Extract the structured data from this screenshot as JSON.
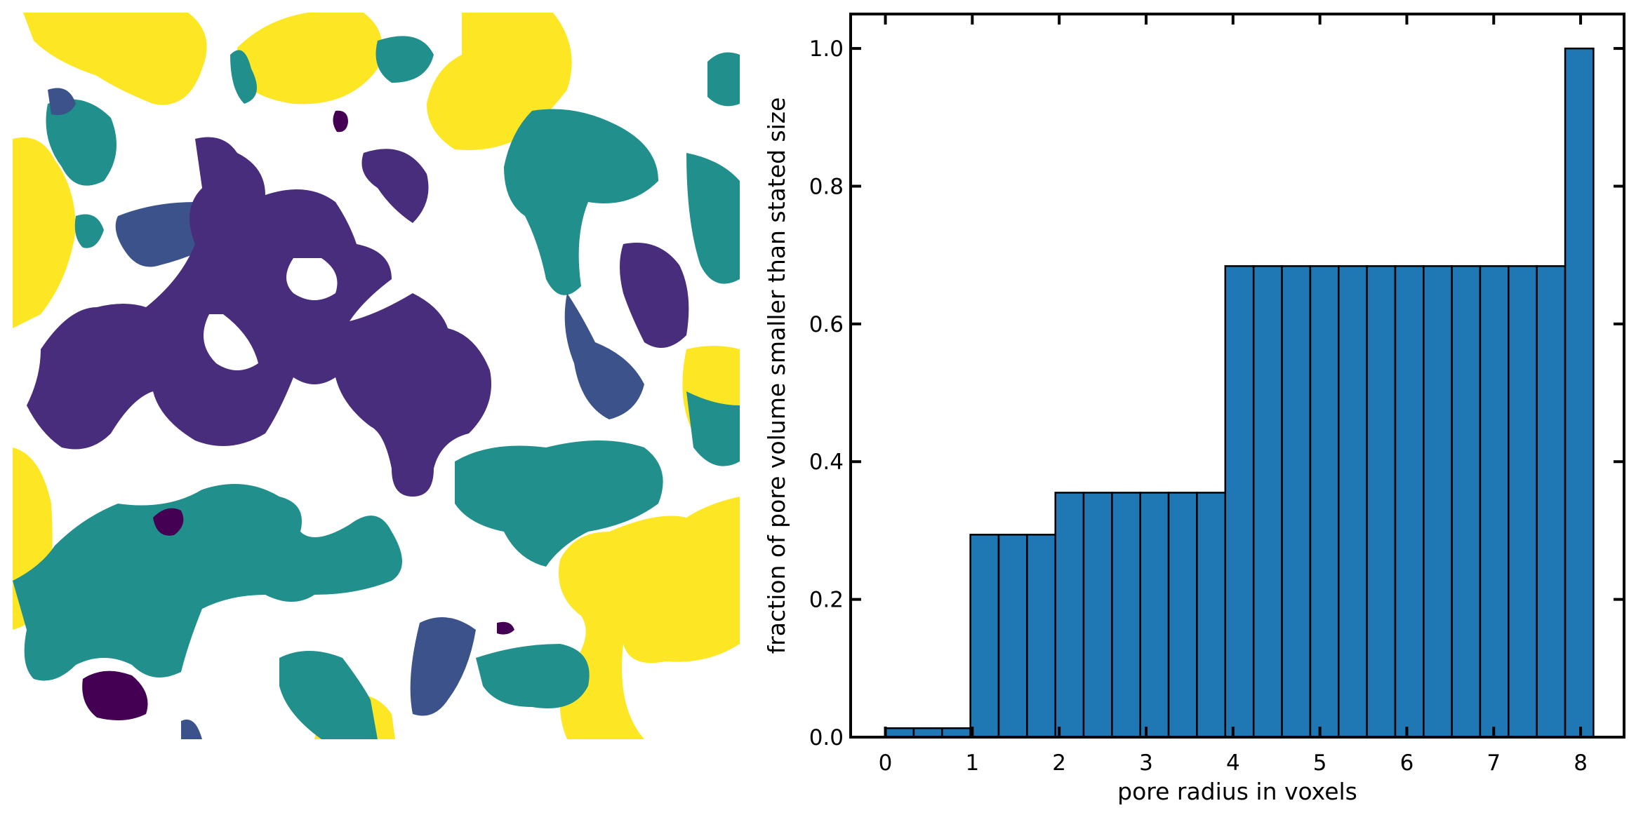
{
  "image_panel": {
    "description_free": true,
    "colormap": {
      "background": "#ffffff",
      "yellow": "#fde725",
      "teal": "#21908d",
      "dark_blue": "#3b528b",
      "purple": "#472d7b",
      "dark_purple": "#440154"
    }
  },
  "chart_data": {
    "type": "bar",
    "xlabel": "pore radius in voxels",
    "ylabel": "fraction of pore volume smaller than stated size",
    "xlim": [
      -0.4,
      8.5
    ],
    "ylim": [
      0,
      1.05
    ],
    "xticks": [
      0,
      1,
      2,
      3,
      4,
      5,
      6,
      7,
      8
    ],
    "yticks": [
      0.0,
      0.2,
      0.4,
      0.6,
      0.8,
      1.0
    ],
    "ytick_labels": [
      "0.0",
      "0.2",
      "0.4",
      "0.6",
      "0.8",
      "1.0"
    ],
    "bar_width": 0.3259,
    "bar_color": "#1f77b4",
    "edge_color": "#000000",
    "x": [
      0.163,
      0.489,
      0.815,
      1.141,
      1.467,
      1.793,
      2.119,
      2.444,
      2.77,
      3.096,
      3.422,
      3.748,
      4.074,
      4.4,
      4.726,
      5.052,
      5.378,
      5.704,
      6.03,
      6.356,
      6.681,
      7.007,
      7.333,
      7.659,
      7.985
    ],
    "values": [
      0.013,
      0.013,
      0.013,
      0.294,
      0.294,
      0.294,
      0.355,
      0.355,
      0.355,
      0.355,
      0.355,
      0.355,
      0.684,
      0.684,
      0.684,
      0.684,
      0.684,
      0.684,
      0.684,
      0.684,
      0.684,
      0.684,
      0.684,
      0.684,
      1.0
    ]
  }
}
